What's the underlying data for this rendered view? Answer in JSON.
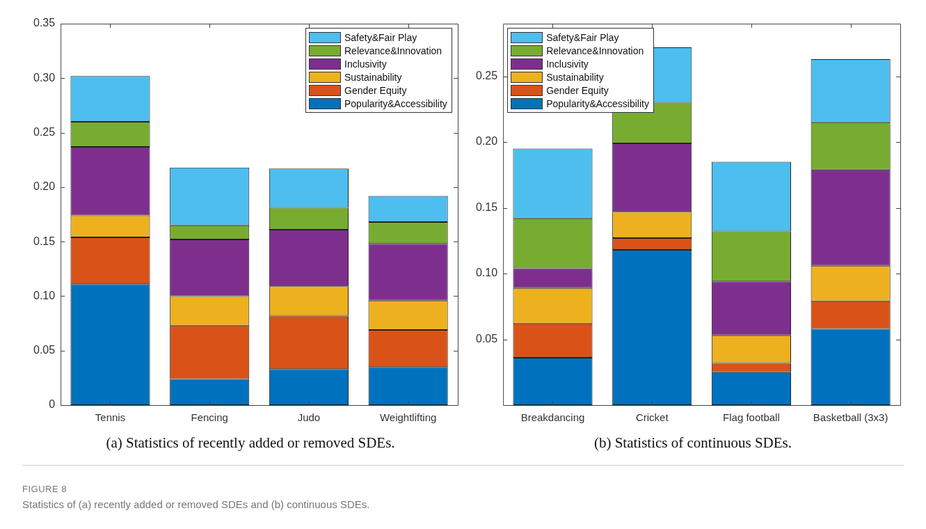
{
  "chart_data": [
    {
      "type": "bar",
      "stacked": true,
      "categories": [
        "Tennis",
        "Fencing",
        "Judo",
        "Weightlifting"
      ],
      "series": [
        {
          "name": "Popularity&Accessibility",
          "color": "#0072bd",
          "values": [
            0.111,
            0.024,
            0.033,
            0.035
          ]
        },
        {
          "name": "Gender Equity",
          "color": "#d95319",
          "values": [
            0.043,
            0.049,
            0.049,
            0.034
          ]
        },
        {
          "name": "Sustainability",
          "color": "#edb120",
          "values": [
            0.02,
            0.027,
            0.027,
            0.027
          ]
        },
        {
          "name": "Inclusivity",
          "color": "#7e2f8e",
          "values": [
            0.063,
            0.052,
            0.052,
            0.052
          ]
        },
        {
          "name": "Relevance&Innovation",
          "color": "#77ac30",
          "values": [
            0.023,
            0.013,
            0.02,
            0.02
          ]
        },
        {
          "name": "Safety&Fair Play",
          "color": "#4dbeee",
          "values": [
            0.042,
            0.053,
            0.036,
            0.024
          ]
        }
      ],
      "ylim": [
        0,
        0.35
      ],
      "yticks": [
        0,
        0.05,
        {
          "value": 0.1,
          "label": "0.10"
        },
        0.15,
        {
          "value": 0.2,
          "label": "0.20"
        },
        0.25,
        {
          "value": 0.3,
          "label": "0.30"
        },
        0.35
      ],
      "legend": "top right",
      "annotations": [
        "(a) Statistics of recently added or removed SDEs.",
        "FIGURE 8",
        "Statistics of (a) recently added or removed SDEs and (b) continuous SDEs."
      ]
    },
    {
      "type": "bar",
      "stacked": true,
      "categories": [
        "Breakdancing",
        "Cricket",
        "Flag football",
        "Basketball (3x3)"
      ],
      "series": [
        {
          "name": "Popularity&Accessibility",
          "color": "#0072bd",
          "values": [
            0.036,
            0.118,
            0.025,
            0.058
          ]
        },
        {
          "name": "Gender Equity",
          "color": "#d95319",
          "values": [
            0.026,
            0.009,
            0.007,
            0.021
          ]
        },
        {
          "name": "Sustainability",
          "color": "#edb120",
          "values": [
            0.027,
            0.02,
            0.021,
            0.027
          ]
        },
        {
          "name": "Inclusivity",
          "color": "#7e2f8e",
          "values": [
            0.015,
            0.052,
            0.041,
            0.073
          ]
        },
        {
          "name": "Relevance&Innovation",
          "color": "#77ac30",
          "values": [
            0.038,
            0.031,
            0.038,
            0.036
          ]
        },
        {
          "name": "Safety&Fair Play",
          "color": "#4dbeee",
          "values": [
            0.053,
            0.042,
            0.053,
            0.048
          ]
        }
      ],
      "ylim": [
        0,
        0.29
      ],
      "yticks": [
        0.05,
        {
          "value": 0.1,
          "label": "0.10"
        },
        0.15,
        {
          "value": 0.2,
          "label": "0.20"
        },
        0.25
      ],
      "legend": "top left",
      "annotations": [
        "(b) Statistics of continuous SDEs."
      ]
    }
  ]
}
